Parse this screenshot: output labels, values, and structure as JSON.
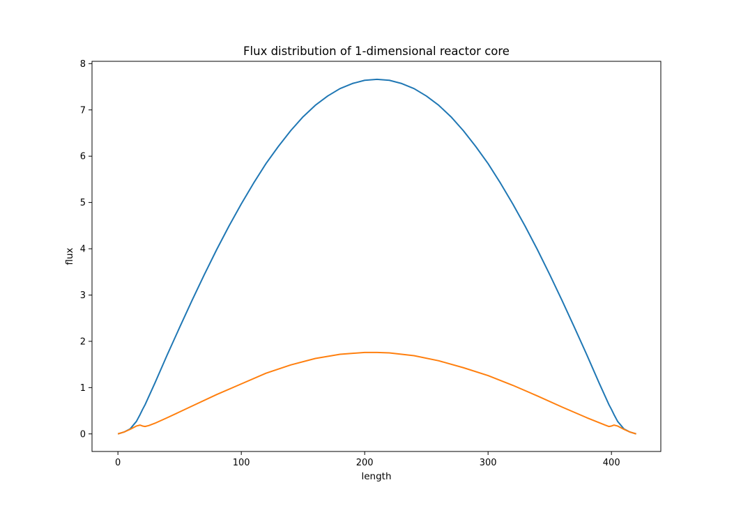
{
  "chart_data": {
    "type": "line",
    "title": "Flux distribution of 1-dimensional reactor core",
    "xlabel": "length",
    "ylabel": "flux",
    "xlim": [
      -21,
      440
    ],
    "ylim": [
      -0.38,
      8.05
    ],
    "xticks": [
      0,
      100,
      200,
      300,
      400
    ],
    "yticks": [
      0,
      1,
      2,
      3,
      4,
      5,
      6,
      7,
      8
    ],
    "grid": false,
    "legend": "none",
    "series": [
      {
        "color": "#1f77b4",
        "x": [
          0,
          5,
          10,
          15,
          18,
          20,
          22,
          30,
          40,
          50,
          60,
          70,
          80,
          90,
          100,
          110,
          120,
          130,
          140,
          150,
          160,
          170,
          180,
          190,
          200,
          210,
          220,
          230,
          240,
          250,
          260,
          270,
          280,
          290,
          300,
          310,
          320,
          330,
          340,
          350,
          360,
          370,
          380,
          390,
          398,
          400,
          402,
          405,
          410,
          415,
          420
        ],
        "values": [
          0.0,
          0.04,
          0.11,
          0.27,
          0.42,
          0.53,
          0.63,
          1.1,
          1.71,
          2.3,
          2.88,
          3.44,
          3.98,
          4.49,
          4.97,
          5.42,
          5.84,
          6.21,
          6.55,
          6.85,
          7.1,
          7.3,
          7.46,
          7.57,
          7.64,
          7.66,
          7.64,
          7.57,
          7.46,
          7.3,
          7.1,
          6.85,
          6.55,
          6.21,
          5.84,
          5.42,
          4.97,
          4.49,
          3.98,
          3.44,
          2.88,
          2.3,
          1.71,
          1.1,
          0.63,
          0.53,
          0.42,
          0.27,
          0.11,
          0.04,
          0.0
        ]
      },
      {
        "color": "#ff7f0e",
        "x": [
          0,
          5,
          10,
          15,
          18,
          20,
          22,
          25,
          30,
          40,
          60,
          80,
          100,
          120,
          140,
          160,
          180,
          200,
          210,
          220,
          240,
          260,
          280,
          300,
          320,
          340,
          360,
          380,
          395,
          398,
          400,
          402,
          405,
          410,
          415,
          420
        ],
        "values": [
          0.0,
          0.04,
          0.1,
          0.17,
          0.19,
          0.17,
          0.16,
          0.18,
          0.23,
          0.35,
          0.6,
          0.85,
          1.08,
          1.31,
          1.49,
          1.63,
          1.72,
          1.76,
          1.76,
          1.75,
          1.69,
          1.58,
          1.43,
          1.26,
          1.05,
          0.82,
          0.58,
          0.35,
          0.19,
          0.16,
          0.17,
          0.19,
          0.17,
          0.1,
          0.04,
          0.0
        ]
      }
    ]
  }
}
